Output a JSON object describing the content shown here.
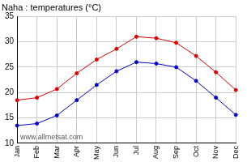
{
  "chart_data": {
    "type": "line",
    "title": "Naha : temperatures (°C)",
    "annotation": "www.allmetsat.com",
    "categories": [
      "Jan",
      "Feb",
      "Mar",
      "Apr",
      "May",
      "Jun",
      "Jul",
      "Aug",
      "Sep",
      "Oct",
      "Nov",
      "Dec"
    ],
    "series": [
      {
        "color": "#dd0000",
        "values": [
          18.5,
          19.0,
          20.7,
          23.8,
          26.5,
          28.6,
          31.0,
          30.7,
          29.8,
          27.2,
          24.0,
          20.5
        ]
      },
      {
        "color": "#0000cc",
        "values": [
          13.5,
          13.9,
          15.5,
          18.5,
          21.5,
          24.2,
          26.0,
          25.7,
          25.0,
          22.3,
          19.0,
          15.6
        ]
      }
    ],
    "ylim": [
      10,
      35
    ],
    "yticks": [
      10,
      15,
      20,
      25,
      30,
      35
    ],
    "grid": true,
    "marker": "circle"
  }
}
